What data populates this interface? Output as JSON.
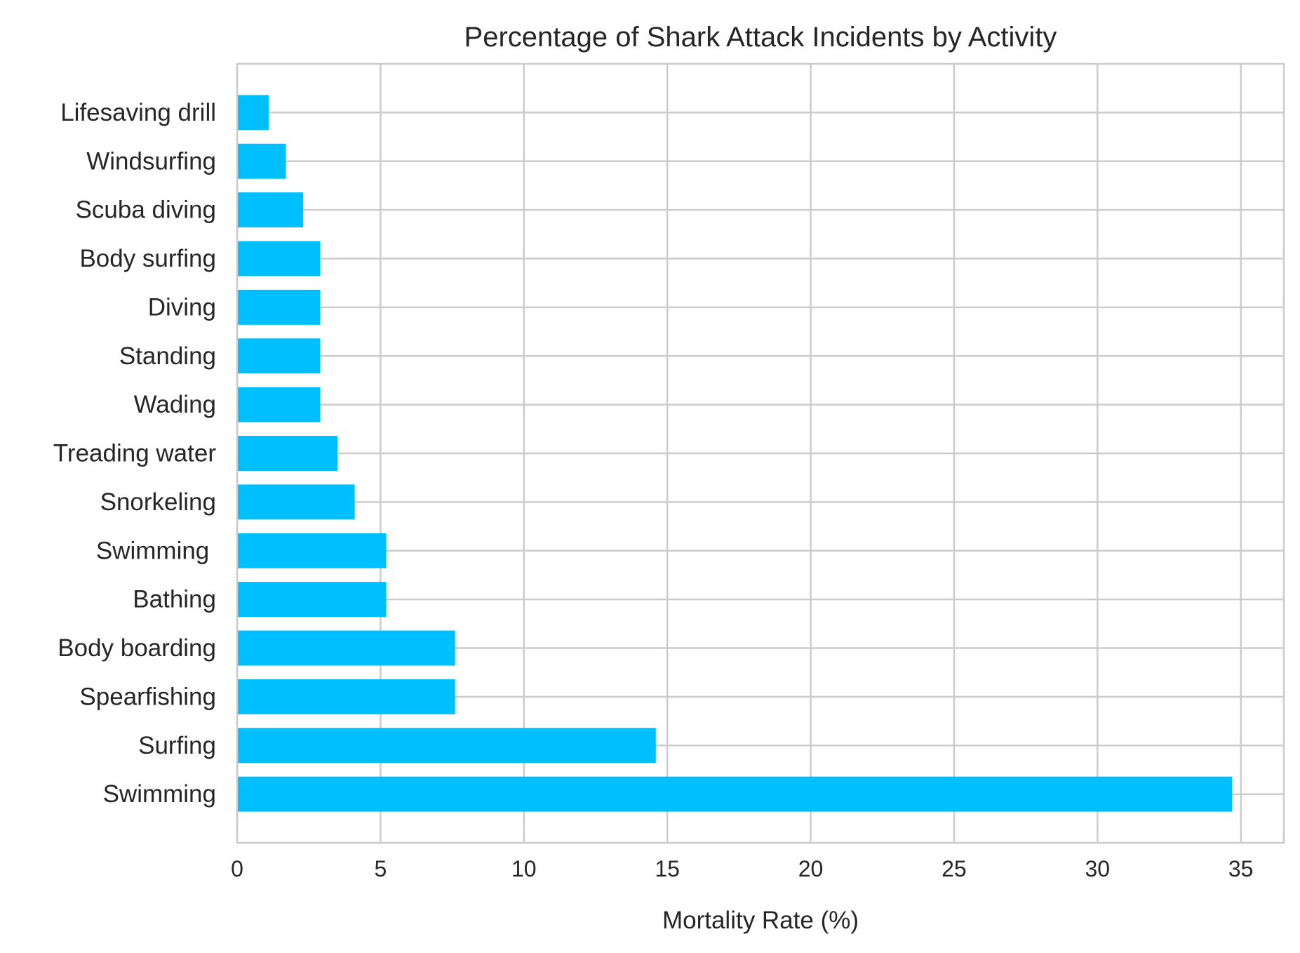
{
  "chart_data": {
    "type": "bar",
    "orientation": "horizontal",
    "title": "Percentage of Shark Attack Incidents by Activity",
    "xlabel": "Mortality Rate (%)",
    "ylabel": "",
    "categories": [
      "Swimming",
      "Surfing",
      "Spearfishing",
      "Body boarding",
      "Bathing",
      "Swimming ",
      "Snorkeling",
      "Treading water",
      "Wading",
      "Standing",
      "Diving",
      "Body surfing",
      "Scuba diving",
      "Windsurfing",
      "Lifesaving drill"
    ],
    "values": [
      34.7,
      14.6,
      7.6,
      7.6,
      5.2,
      5.2,
      4.1,
      3.5,
      2.9,
      2.9,
      2.9,
      2.9,
      2.3,
      1.7,
      1.1
    ],
    "xlim": [
      0,
      36.5
    ],
    "xticks": [
      0,
      5,
      10,
      15,
      20,
      25,
      30,
      35
    ],
    "xtick_labels": [
      "0",
      "5",
      "10",
      "15",
      "20",
      "25",
      "30",
      "35"
    ],
    "grid": true,
    "legend": "none",
    "colors": {
      "bar": "#00BFFF",
      "grid": "#CCCCCC",
      "text": "#262626",
      "background": "#FFFFFF"
    }
  }
}
